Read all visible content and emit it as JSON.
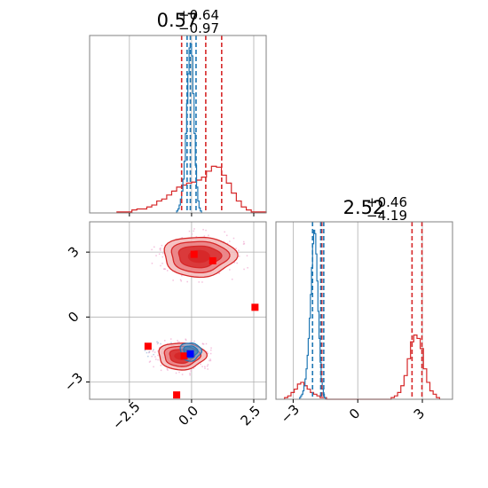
{
  "colors": {
    "red": "#d62728",
    "red_fill": "#e8787a",
    "red_light": "#f3b8b8",
    "blue": "#1f77b4",
    "marker_red": "#ff0000",
    "marker_blue": "#0000ff",
    "grid": "#b0b0b0",
    "frame": "#808080",
    "scatter_pink": "#f0a8d0"
  },
  "chart_data": [
    {
      "type": "histogram",
      "panel": "top-left",
      "title": {
        "value": "0.57",
        "sup": "+0.64",
        "sub": "−0.97"
      },
      "xlim": [
        -4.1,
        3.0
      ],
      "grid": true,
      "xticks": [
        -2.5,
        0.0,
        2.5
      ],
      "series": [
        {
          "color": "red",
          "bins_start": -3.0,
          "bin_width": 0.2,
          "counts": [
            1,
            1,
            1,
            3,
            4,
            4,
            6,
            8,
            12,
            14,
            18,
            22,
            26,
            28,
            30,
            31,
            33,
            36,
            42,
            47,
            46,
            38,
            30,
            20,
            12,
            6,
            3,
            1,
            1,
            1
          ],
          "quantiles": [
            -0.4,
            0.57,
            1.21
          ]
        },
        {
          "color": "blue",
          "bins_start": -0.6,
          "bin_width": 0.05,
          "counts": [
            2,
            4,
            8,
            14,
            22,
            34,
            52,
            80,
            110,
            140,
            166,
            170,
            158,
            120,
            80,
            48,
            26,
            12,
            5,
            2
          ],
          "quantiles": [
            -0.18,
            -0.05,
            0.18
          ]
        }
      ]
    },
    {
      "type": "contour-2d",
      "panel": "bottom-left",
      "xlim": [
        -4.1,
        3.0
      ],
      "ylim": [
        -3.8,
        4.4
      ],
      "grid": true,
      "xticks": [
        -2.5,
        0.0,
        2.5
      ],
      "yticks": [
        3,
        0,
        -3
      ],
      "xtick_labels": [
        "−2.5",
        "0.0",
        "2.5"
      ],
      "ytick_labels": [
        "3",
        "0",
        "−3"
      ],
      "red_blobs": [
        {
          "cx": 0.3,
          "cy": 2.8,
          "rx": [
            1.45,
            1.15,
            0.85
          ],
          "ry": [
            0.92,
            0.72,
            0.5
          ],
          "core": [
            0.45,
            0.3
          ]
        },
        {
          "cx": -0.4,
          "cy": -1.8,
          "rx": [
            0.95,
            0.72,
            0.5
          ],
          "ry": [
            0.62,
            0.47,
            0.32
          ],
          "core": [
            0.3,
            0.18
          ]
        }
      ],
      "blue_blob": {
        "cx": -0.05,
        "cy": -1.6,
        "rx": [
          0.42,
          0.28
        ],
        "ry": [
          0.42,
          0.28
        ]
      },
      "markers_red": [
        [
          2.55,
          0.45
        ],
        [
          -1.75,
          -1.35
        ],
        [
          -0.6,
          -3.6
        ],
        [
          0.1,
          2.9
        ],
        [
          0.85,
          2.6
        ],
        [
          -0.3,
          -1.8
        ]
      ],
      "markers_blue": [
        [
          -0.05,
          -1.7
        ]
      ]
    },
    {
      "type": "histogram",
      "panel": "bottom-right",
      "title": {
        "value": "2.52",
        "sup": "+0.46",
        "sub": "−4.19"
      },
      "xlim": [
        -3.8,
        4.4
      ],
      "grid": true,
      "xticks": [
        -3,
        0,
        3
      ],
      "xtick_labels": [
        "−3",
        "0",
        "3"
      ],
      "series": [
        {
          "color": "red",
          "bins_start": -3.4,
          "bin_width": 0.15,
          "counts": [
            1,
            2,
            4,
            6,
            9,
            10,
            8,
            6,
            4,
            3,
            2,
            1,
            1,
            0,
            0,
            0,
            0,
            0,
            0,
            0,
            0,
            0,
            0,
            0,
            0,
            0,
            0,
            0,
            0,
            0,
            0,
            0,
            0,
            1,
            2,
            4,
            8,
            14,
            24,
            34,
            38,
            36,
            30,
            18,
            10,
            5,
            3,
            1
          ],
          "quantiles": [
            -1.67,
            2.52,
            2.98
          ]
        },
        {
          "color": "blue",
          "bins_start": -2.7,
          "bin_width": 0.05,
          "counts": [
            1,
            2,
            3,
            5,
            8,
            12,
            18,
            26,
            36,
            48,
            62,
            78,
            92,
            100,
            98,
            86,
            70,
            52,
            36,
            22,
            12,
            6,
            3,
            1
          ],
          "quantiles": [
            -2.1,
            -1.72,
            -1.58
          ]
        }
      ]
    }
  ]
}
